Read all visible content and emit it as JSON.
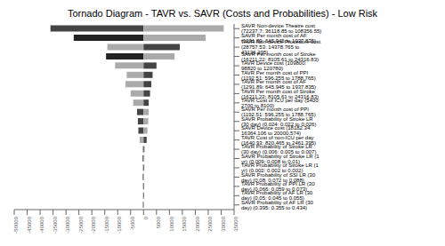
{
  "chart_data": {
    "type": "bar",
    "title": "Tornado Diagram - TAVR vs. SAVR (Costs and Probabilities) - Low Risk",
    "orientation": "horizontal",
    "stacked": true,
    "grid": false,
    "categories": [
      "SAVR Non-device Theatre cost (72237.7: 36118.85 to 108356.55)",
      "SAVR Per month cost of AF (1291.89: 645.945 to 1937.835)",
      "TAVR Non-device Procedure cost (28757.53: 14378.765 to 43136.295)",
      "SAVR Per month cost of Stroke (16211.22: 8105.61 to 24316.83)",
      "TAVR Device cost (109800: 98820 to 120780)",
      "TAVR Per month cost of PPI (1192.51: 596.255 to 1788.765)",
      "TAVR Per month cost of AF (1291.89: 645.945 to 1937.835)",
      "TAVR Per month cost of Stroke (16211.22: 8105.61 to 24316.83)",
      "TAVR Cost of ICU per day (5400: 2700 to 8100)",
      "SAVR Per month cost of PPI (1192.51: 596.255 to 1788.765)",
      "SAVR Probability of Stroke LR (30 day) (0.024: 0.022 to 0.026)",
      "SAVR Device cost (18182.34: 16364.106 to 20000.574)",
      "TAVR Cost of non-ICU per day (1640.93: 820.465 to 2461.395)",
      "TAVR Probability of Stroke LR (30 day) (0.006: 0.005 to 0.007)",
      "SAVR Probability of Stroke LR (1 yr) (0.009: 0.008 to 0.01)",
      "TAVR Probability of Stroke LR (1 yr) (0.002: 0.002 to 0.002)",
      "SAVR Probability of SSI LR (30 day) (0.08: 0.072 to 0.088)",
      "TAVR Probability of PPI LR (30 day) (0.066: 0.059 to 0.073)",
      "TAVR Probability of AF LR (30 day) (0.05: 0.045 to 0.055)",
      "SAVR Probability of AF LR (30 day) (0.395: 0.355 to 0.434)"
    ],
    "series": [
      {
        "values": [
          -36000,
          -27000,
          -14000,
          -14500,
          -11000,
          -6500,
          -7000,
          -5000,
          -4000,
          -2500,
          -2200,
          -2000,
          -1500,
          -400,
          -380,
          -350,
          -320,
          -300,
          -270,
          -250
        ],
        "colors": [
          "#444444",
          "#222222",
          "#aaaaaa",
          "#222222",
          "#aaaaaa",
          "#aaaaaa",
          "#aaaaaa",
          "#aaaaaa",
          "#aaaaaa",
          "#444444",
          "#444444",
          "#444444",
          "#aaaaaa",
          "#aaaaaa",
          "#444444",
          "#aaaaaa",
          "#444444",
          "#aaaaaa",
          "#aaaaaa",
          "#444444"
        ]
      },
      {
        "values": [
          31000,
          24000,
          14000,
          12000,
          5000,
          3500,
          3000,
          2500,
          2000,
          2000,
          1800,
          1500,
          1200,
          350,
          320,
          280,
          260,
          240,
          220,
          200
        ],
        "colors": [
          "#aaaaaa",
          "#aaaaaa",
          "#444444",
          "#aaaaaa",
          "#444444",
          "#444444",
          "#444444",
          "#444444",
          "#444444",
          "#aaaaaa",
          "#aaaaaa",
          "#aaaaaa",
          "#444444",
          "#444444",
          "#aaaaaa",
          "#444444",
          "#aaaaaa",
          "#444444",
          "#444444",
          "#aaaaaa"
        ]
      }
    ],
    "xlim": [
      -50000,
      35000
    ],
    "xticks": [
      -50000,
      -45000,
      -40000,
      -35000,
      -30000,
      -25000,
      -20000,
      -15000,
      -10000,
      -5000,
      0,
      5000,
      10000,
      15000,
      20000,
      25000,
      30000,
      35000
    ]
  }
}
